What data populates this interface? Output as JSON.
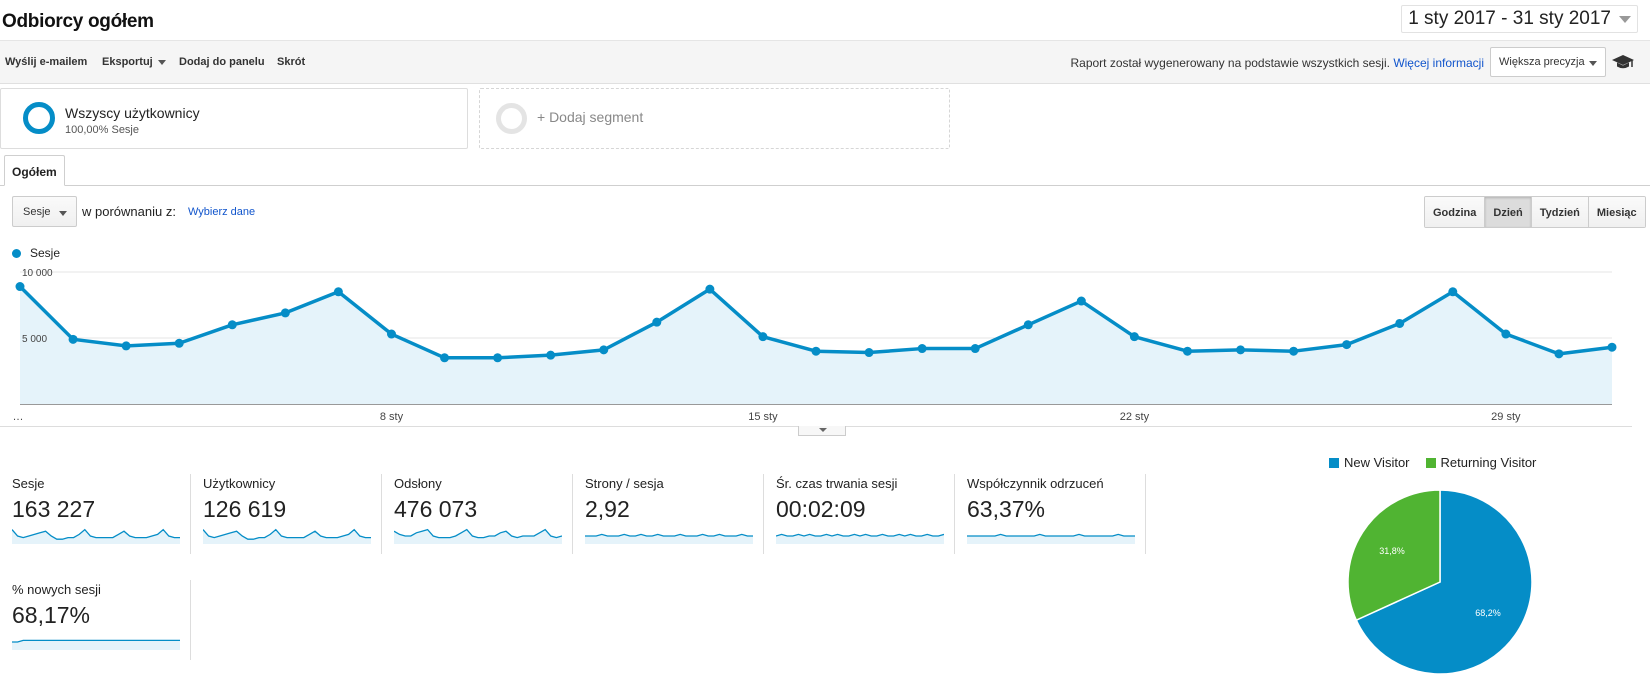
{
  "header": {
    "title": "Odbiorcy ogółem",
    "date_range": "1 sty 2017 - 31 sty 2017"
  },
  "toolbar": {
    "email_label": "Wyślij e-mailem",
    "export_label": "Eksportuj",
    "add_dashboard_label": "Dodaj do panelu",
    "shortcut_label": "Skrót",
    "report_note": "Raport został wygenerowany na podstawie wszystkich sesji.",
    "more_info_link": "Więcej informacji",
    "precision_value": "Większa precyzja",
    "cap_icon": "graduation-cap-icon"
  },
  "segments": {
    "active_name": "Wszyscy użytkownicy",
    "active_share": "100,00% Sesje",
    "add_label": "+ Dodaj segment"
  },
  "tabs": [
    {
      "label": "Ogółem"
    }
  ],
  "controls": {
    "metric_value": "Sesje",
    "compare_label": "w porównaniu z:",
    "compare_link": "Wybierz dane",
    "granularity": [
      "Godzina",
      "Dzień",
      "Tydzień",
      "Miesiąc"
    ],
    "granularity_active": "Dzień"
  },
  "colors": {
    "series": "#058dc7",
    "fill": "#e5f3fa",
    "new_visitor": "#058dc7",
    "returning_visitor": "#50b432"
  },
  "chart_data": [
    {
      "type": "area",
      "series": [
        {
          "name": "Sesje",
          "x": [
            "1 sty",
            "2 sty",
            "3 sty",
            "4 sty",
            "5 sty",
            "6 sty",
            "7 sty",
            "8 sty",
            "9 sty",
            "10 sty",
            "11 sty",
            "12 sty",
            "13 sty",
            "14 sty",
            "15 sty",
            "16 sty",
            "17 sty",
            "18 sty",
            "19 sty",
            "20 sty",
            "21 sty",
            "22 sty",
            "23 sty",
            "24 sty",
            "25 sty",
            "26 sty",
            "27 sty",
            "28 sty",
            "29 sty",
            "30 sty",
            "31 sty"
          ],
          "values": [
            8900,
            4900,
            4400,
            4600,
            6000,
            6900,
            8500,
            5300,
            3500,
            3500,
            3700,
            4100,
            6200,
            8700,
            5100,
            4000,
            3900,
            4200,
            4200,
            6000,
            7800,
            5100,
            4000,
            4100,
            4000,
            4500,
            6100,
            8500,
            5300,
            3800,
            4300
          ]
        }
      ],
      "y_ticks": [
        "10 000",
        "5 000"
      ],
      "x_ticks": [
        "…",
        "8 sty",
        "15 sty",
        "22 sty",
        "29 sty"
      ],
      "ylim": [
        0,
        10000
      ],
      "grid": true
    },
    {
      "type": "pie",
      "legend_placement": "top",
      "slices": [
        {
          "name": "New Visitor",
          "value": 68.2,
          "label": "68,2%"
        },
        {
          "name": "Returning Visitor",
          "value": 31.8,
          "label": "31,8%"
        }
      ]
    }
  ],
  "metrics": [
    {
      "label": "Sesje",
      "value": "163 227",
      "spark": [
        9,
        5,
        4,
        5,
        6,
        7,
        8,
        5,
        3,
        3,
        4,
        4,
        6,
        9,
        5,
        4,
        4,
        4,
        4,
        6,
        8,
        5,
        4,
        4,
        4,
        5,
        6,
        9,
        5,
        4,
        4
      ]
    },
    {
      "label": "Użytkownicy",
      "value": "126 619",
      "spark": [
        9,
        5,
        4,
        5,
        6,
        7,
        8,
        5,
        3,
        3,
        4,
        4,
        6,
        9,
        5,
        4,
        4,
        4,
        4,
        6,
        8,
        5,
        4,
        4,
        4,
        5,
        6,
        9,
        5,
        4,
        4
      ]
    },
    {
      "label": "Odsłony",
      "value": "476 073",
      "spark": [
        8,
        6,
        5,
        5,
        7,
        8,
        9,
        5,
        4,
        4,
        4,
        5,
        7,
        9,
        5,
        4,
        4,
        5,
        5,
        7,
        8,
        5,
        4,
        5,
        5,
        5,
        7,
        9,
        5,
        4,
        5
      ]
    },
    {
      "label": "Strony / sesja",
      "value": "2,92",
      "spark": [
        5,
        5,
        5,
        6,
        5,
        5,
        5,
        6,
        5,
        5,
        6,
        5,
        5,
        6,
        5,
        5,
        5,
        6,
        5,
        5,
        5,
        6,
        5,
        5,
        6,
        5,
        5,
        5,
        6,
        5,
        5
      ]
    },
    {
      "label": "Śr. czas trwania sesji",
      "value": "00:02:09",
      "spark": [
        5,
        6,
        5,
        5,
        6,
        5,
        6,
        5,
        5,
        6,
        5,
        6,
        5,
        5,
        6,
        5,
        6,
        5,
        5,
        6,
        5,
        5,
        6,
        5,
        6,
        5,
        5,
        6,
        5,
        5,
        6
      ]
    },
    {
      "label": "Współczynnik odrzuceń",
      "value": "63,37%",
      "spark": [
        5,
        5,
        5,
        5,
        5,
        5,
        6,
        5,
        5,
        5,
        5,
        5,
        5,
        6,
        5,
        5,
        5,
        5,
        5,
        5,
        6,
        5,
        5,
        5,
        5,
        5,
        5,
        6,
        5,
        5,
        5
      ]
    },
    {
      "label": "% nowych sesji",
      "value": "68,17%",
      "spark": [
        5,
        5,
        6,
        6,
        6,
        6,
        6,
        6,
        6,
        6,
        6,
        6,
        6,
        6,
        6,
        6,
        6,
        6,
        6,
        6,
        6,
        6,
        6,
        6,
        6,
        6,
        6,
        6,
        6,
        6,
        6
      ]
    }
  ]
}
